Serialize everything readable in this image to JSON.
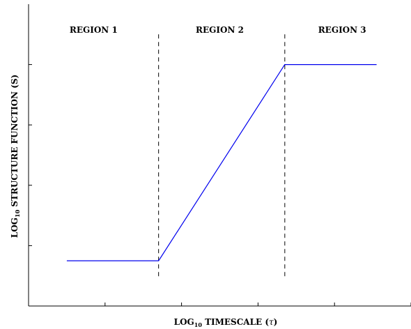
{
  "chart_data": {
    "type": "line",
    "xlabel": {
      "prefix": "LOG",
      "subscript": "10",
      "text": " TIMESCALE (",
      "symbol": "τ",
      "suffix": ")"
    },
    "ylabel": {
      "prefix": "LOG",
      "subscript": "10",
      "text": " STRUCTURE FUNCTION (S)"
    },
    "xlim": [
      0,
      100
    ],
    "ylim": [
      0,
      100
    ],
    "x_ticks": [
      0,
      20,
      40,
      60,
      80,
      100
    ],
    "y_ticks": [
      20,
      40,
      60,
      80
    ],
    "grid": false,
    "series": [
      {
        "color": "#0000ee",
        "x": [
          10,
          34,
          67,
          91
        ],
        "y": [
          15,
          15,
          80,
          80
        ]
      }
    ],
    "region_boundaries": [
      34,
      67
    ],
    "regions": [
      {
        "label": "REGION 1",
        "x": 17
      },
      {
        "label": "REGION 2",
        "x": 50
      },
      {
        "label": "REGION 3",
        "x": 82
      }
    ]
  }
}
